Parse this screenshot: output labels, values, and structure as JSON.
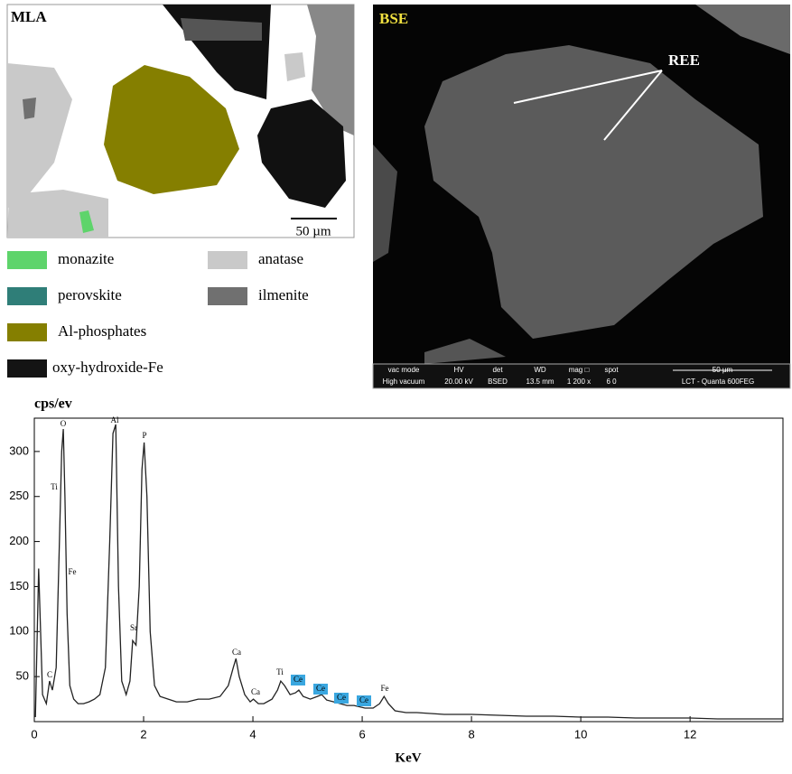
{
  "mla": {
    "label": "MLA",
    "scale": "50 µm",
    "legend": [
      {
        "name": "monazite",
        "color": "#5ed46b"
      },
      {
        "name": "perovskite",
        "color": "#2f7e78"
      },
      {
        "name": "Al-phosphates",
        "color": "#857f00"
      },
      {
        "name": "oxy-hydroxide-Fe",
        "color": "#141414"
      },
      {
        "name": "anatase",
        "color": "#c9c9c9"
      },
      {
        "name": "ilmenite",
        "color": "#707070"
      }
    ]
  },
  "bse": {
    "label": "BSE",
    "annotation": "REE",
    "info_header": [
      "vac mode",
      "HV",
      "det",
      "WD",
      "mag □",
      "spot"
    ],
    "info_values": [
      "High vacuum",
      "20.00 kV",
      "BSED",
      "13.5 mm",
      "1 200 x",
      "6 0"
    ],
    "scale": "50 µm",
    "instrument": "LCT - Quanta 600FEG"
  },
  "chart_data": {
    "type": "line",
    "ylabel": "cps/ev",
    "xlabel": "KeV",
    "color": "#222222",
    "x": [
      0.02,
      0.08,
      0.15,
      0.22,
      0.28,
      0.33,
      0.4,
      0.46,
      0.5,
      0.53,
      0.56,
      0.6,
      0.65,
      0.72,
      0.8,
      0.9,
      1.0,
      1.1,
      1.2,
      1.3,
      1.38,
      1.44,
      1.49,
      1.54,
      1.6,
      1.68,
      1.75,
      1.8,
      1.86,
      1.92,
      1.97,
      2.01,
      2.06,
      2.12,
      2.2,
      2.3,
      2.45,
      2.6,
      2.8,
      3.0,
      3.2,
      3.4,
      3.55,
      3.64,
      3.69,
      3.75,
      3.85,
      3.95,
      4.01,
      4.1,
      4.2,
      4.35,
      4.45,
      4.51,
      4.58,
      4.68,
      4.78,
      4.84,
      4.92,
      5.05,
      5.18,
      5.26,
      5.35,
      5.48,
      5.6,
      5.72,
      5.85,
      6.05,
      6.2,
      6.32,
      6.4,
      6.48,
      6.6,
      6.8,
      7.0,
      7.5,
      8,
      8.5,
      9,
      9.5,
      10,
      10.5,
      11,
      11.5,
      12,
      12.5,
      13,
      13.7
    ],
    "values": [
      5,
      170,
      30,
      20,
      45,
      35,
      60,
      200,
      300,
      325,
      250,
      120,
      40,
      25,
      20,
      20,
      22,
      25,
      30,
      60,
      200,
      320,
      330,
      150,
      45,
      30,
      45,
      90,
      85,
      150,
      280,
      310,
      250,
      100,
      40,
      28,
      25,
      22,
      22,
      25,
      25,
      28,
      40,
      60,
      70,
      50,
      30,
      22,
      25,
      20,
      20,
      25,
      35,
      45,
      40,
      30,
      32,
      35,
      28,
      25,
      28,
      30,
      24,
      22,
      20,
      18,
      18,
      15,
      15,
      20,
      28,
      20,
      12,
      10,
      10,
      8,
      8,
      7,
      6,
      6,
      5,
      5,
      4,
      4,
      4,
      3,
      3,
      3
    ],
    "xlim": [
      0,
      13.7
    ],
    "ylim": [
      0,
      337
    ],
    "xticks": [
      0,
      2,
      4,
      6,
      8,
      10,
      12
    ],
    "yticks": [
      50,
      100,
      150,
      200,
      250,
      300
    ],
    "annotations": [
      "C",
      "O",
      "Ti",
      "Fe",
      "Al",
      "Sr",
      "P",
      "Ca",
      "Ca",
      "Ti",
      "Ce",
      "Ce",
      "Ce",
      "Ce",
      "Fe"
    ]
  }
}
